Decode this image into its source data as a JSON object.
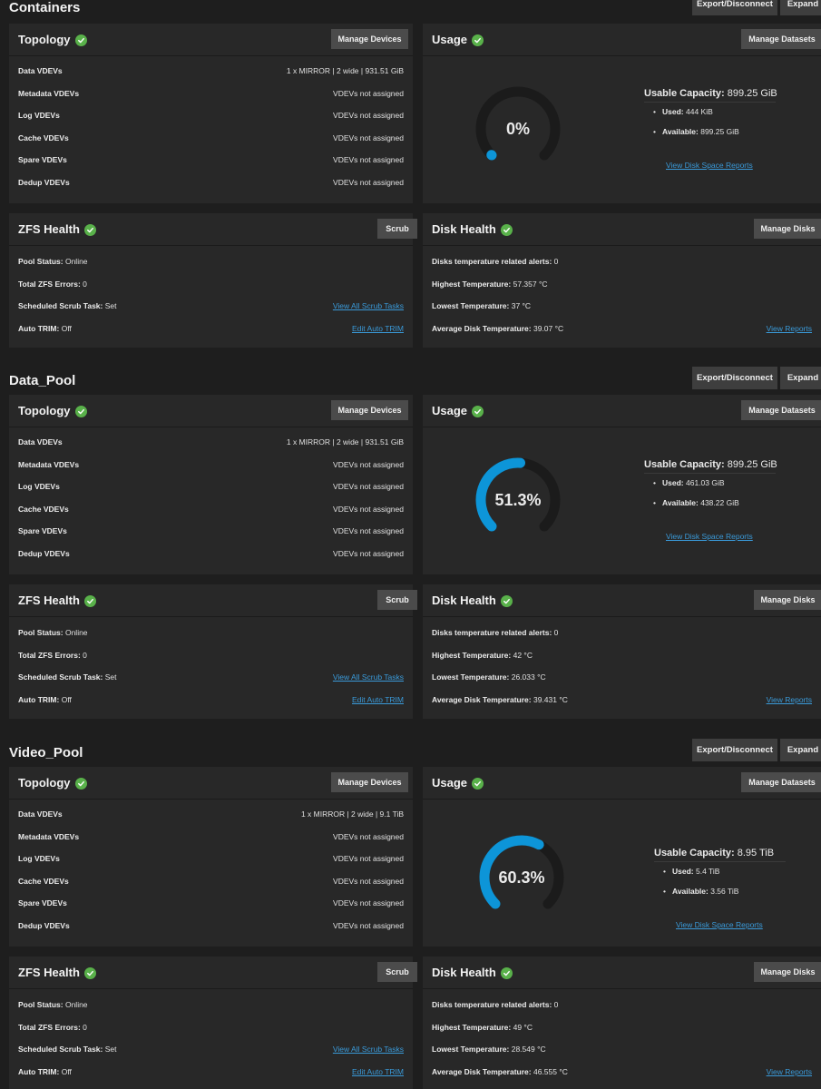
{
  "buttons": {
    "export": "Export/Disconnect",
    "expand": "Expand",
    "manage_devices": "Manage Devices",
    "manage_datasets": "Manage Datasets",
    "scrub": "Scrub",
    "manage_disks": "Manage Disks"
  },
  "titles": {
    "topology": "Topology",
    "usage": "Usage",
    "zfs_health": "ZFS Health",
    "disk_health": "Disk Health"
  },
  "labels": {
    "data_vdevs": "Data VDEVs",
    "metadata_vdevs": "Metadata VDEVs",
    "log_vdevs": "Log VDEVs",
    "cache_vdevs": "Cache VDEVs",
    "spare_vdevs": "Spare VDEVs",
    "dedup_vdevs": "Dedup VDEVs",
    "pool_status": "Pool Status:",
    "total_zfs_errors": "Total ZFS Errors:",
    "scheduled_scrub": "Scheduled Scrub Task:",
    "auto_trim": "Auto TRIM:",
    "usable_capacity": "Usable Capacity:",
    "used": "Used:",
    "available": "Available:",
    "temp_alerts": "Disks temperature related alerts:",
    "highest_temp": "Highest Temperature:",
    "lowest_temp": "Lowest Temperature:",
    "avg_temp": "Average Disk Temperature:"
  },
  "links": {
    "view_all_scrub": "View All Scrub Tasks",
    "edit_auto_trim": "Edit Auto TRIM",
    "view_disk_space": "View Disk Space Reports",
    "view_reports": "View Reports"
  },
  "colors": {
    "accent": "#0d95d8",
    "healthy": "#59b14a"
  },
  "pools": [
    {
      "name": "Containers",
      "topology": {
        "data_vdevs": "1 x MIRROR | 2 wide | 931.51 GiB",
        "metadata_vdevs": "VDEVs not assigned",
        "log_vdevs": "VDEVs not assigned",
        "cache_vdevs": "VDEVs not assigned",
        "spare_vdevs": "VDEVs not assigned",
        "dedup_vdevs": "VDEVs not assigned"
      },
      "usage": {
        "percent_label": "0%",
        "percent": 0,
        "capacity": "899.25 GiB",
        "used": "444 KiB",
        "available": "899.25 GiB"
      },
      "zfs": {
        "status": "Online",
        "errors": "0",
        "scrub": "Set",
        "trim": "Off"
      },
      "disk": {
        "alerts": "0",
        "highest": "57.357 °C",
        "lowest": "37 °C",
        "average": "39.07 °C"
      }
    },
    {
      "name": "Data_Pool",
      "topology": {
        "data_vdevs": "1 x MIRROR | 2 wide | 931.51 GiB",
        "metadata_vdevs": "VDEVs not assigned",
        "log_vdevs": "VDEVs not assigned",
        "cache_vdevs": "VDEVs not assigned",
        "spare_vdevs": "VDEVs not assigned",
        "dedup_vdevs": "VDEVs not assigned"
      },
      "usage": {
        "percent_label": "51.3%",
        "percent": 51.3,
        "capacity": "899.25 GiB",
        "used": "461.03 GiB",
        "available": "438.22 GiB"
      },
      "zfs": {
        "status": "Online",
        "errors": "0",
        "scrub": "Set",
        "trim": "Off"
      },
      "disk": {
        "alerts": "0",
        "highest": "42 °C",
        "lowest": "26.033 °C",
        "average": "39.431 °C"
      }
    },
    {
      "name": "Video_Pool",
      "topology": {
        "data_vdevs": "1 x MIRROR | 2 wide | 9.1 TiB",
        "metadata_vdevs": "VDEVs not assigned",
        "log_vdevs": "VDEVs not assigned",
        "cache_vdevs": "VDEVs not assigned",
        "spare_vdevs": "VDEVs not assigned",
        "dedup_vdevs": "VDEVs not assigned"
      },
      "usage": {
        "percent_label": "60.3%",
        "percent": 60.3,
        "capacity": "8.95 TiB",
        "used": "5.4 TiB",
        "available": "3.56 TiB"
      },
      "zfs": {
        "status": "Online",
        "errors": "0",
        "scrub": "Set",
        "trim": "Off"
      },
      "disk": {
        "alerts": "0",
        "highest": "49 °C",
        "lowest": "28.549 °C",
        "average": "46.555 °C"
      }
    }
  ]
}
